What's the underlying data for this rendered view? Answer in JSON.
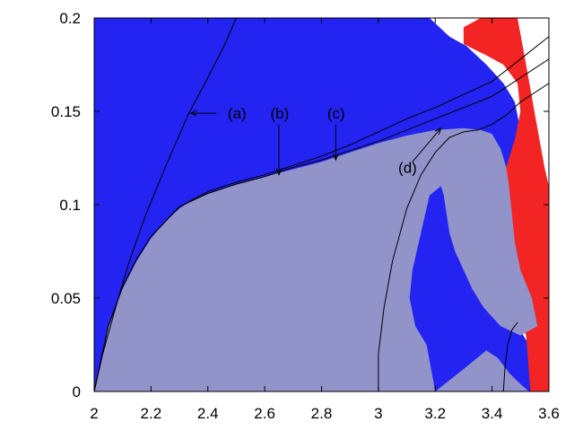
{
  "chart_data": {
    "type": "area",
    "title": "",
    "xlabel": "",
    "ylabel": "",
    "xlim": [
      2,
      3.6
    ],
    "ylim": [
      0,
      0.2
    ],
    "x_ticks": [
      "2",
      "2.2",
      "2.4",
      "2.6",
      "2.8",
      "3",
      "3.2",
      "3.4",
      "3.6"
    ],
    "y_ticks": [
      "0",
      "0.05",
      "0.1",
      "0.15",
      "0.2"
    ],
    "grid": false,
    "colors": {
      "blue": "#2323f2",
      "red": "#f22424",
      "lavender": "#9193c9",
      "white": "#ffffff",
      "line": "#000000"
    },
    "regions": [
      {
        "color": "blue",
        "boundary": [
          [
            2,
            0
          ],
          [
            2,
            0.2
          ],
          [
            3.18,
            0.2
          ],
          [
            3.25,
            0.19
          ],
          [
            3.31,
            0.185
          ],
          [
            3.38,
            0.175
          ],
          [
            3.44,
            0.165
          ],
          [
            3.48,
            0.155
          ],
          [
            3.5,
            0.14
          ],
          [
            3.47,
            0.12
          ],
          [
            3.43,
            0.1
          ],
          [
            3.41,
            0.08
          ],
          [
            3.42,
            0.06
          ],
          [
            3.46,
            0.045
          ],
          [
            3.51,
            0.03
          ],
          [
            3.55,
            0.02
          ],
          [
            3.58,
            0.0
          ],
          [
            2,
            0
          ]
        ]
      },
      {
        "color": "red",
        "boundary": [
          [
            3.3,
            0.195
          ],
          [
            3.36,
            0.2
          ],
          [
            3.49,
            0.2
          ],
          [
            3.55,
            0.15
          ],
          [
            3.585,
            0.12
          ],
          [
            3.6,
            0.11
          ],
          [
            3.6,
            0.0
          ],
          [
            3.535,
            0.0
          ],
          [
            3.52,
            0.03
          ],
          [
            3.47,
            0.05
          ],
          [
            3.43,
            0.06
          ],
          [
            3.41,
            0.08
          ],
          [
            3.42,
            0.1
          ],
          [
            3.45,
            0.12
          ],
          [
            3.48,
            0.135
          ],
          [
            3.5,
            0.15
          ],
          [
            3.49,
            0.165
          ],
          [
            3.44,
            0.175
          ],
          [
            3.38,
            0.18
          ],
          [
            3.34,
            0.183
          ],
          [
            3.3,
            0.186
          ]
        ]
      },
      {
        "color": "white",
        "boundary": [
          [
            3.49,
            0.2
          ],
          [
            3.6,
            0.2
          ],
          [
            3.6,
            0.11
          ],
          [
            3.585,
            0.12
          ],
          [
            3.555,
            0.145
          ],
          [
            3.52,
            0.175
          ]
        ]
      },
      {
        "color": "lavender",
        "boundary": [
          [
            2,
            0
          ],
          [
            2.05,
            0.035
          ],
          [
            2.1,
            0.055
          ],
          [
            2.15,
            0.07
          ],
          [
            2.2,
            0.082
          ],
          [
            2.25,
            0.091
          ],
          [
            2.3,
            0.098
          ],
          [
            2.35,
            0.103
          ],
          [
            2.4,
            0.106
          ],
          [
            2.5,
            0.111
          ],
          [
            2.6,
            0.115
          ],
          [
            2.7,
            0.119
          ],
          [
            2.8,
            0.123
          ],
          [
            2.9,
            0.128
          ],
          [
            3.0,
            0.133
          ],
          [
            3.1,
            0.137
          ],
          [
            3.2,
            0.14
          ],
          [
            3.3,
            0.141
          ],
          [
            3.36,
            0.14
          ],
          [
            3.4,
            0.138
          ],
          [
            3.43,
            0.13
          ],
          [
            3.45,
            0.12
          ],
          [
            3.46,
            0.11
          ],
          [
            3.47,
            0.095
          ],
          [
            3.48,
            0.08
          ],
          [
            3.5,
            0.065
          ],
          [
            3.54,
            0.05
          ],
          [
            3.56,
            0.035
          ],
          [
            3.5,
            0.03
          ],
          [
            3.43,
            0.035
          ],
          [
            3.37,
            0.045
          ],
          [
            3.33,
            0.055
          ],
          [
            3.3,
            0.065
          ],
          [
            3.27,
            0.075
          ],
          [
            3.25,
            0.085
          ],
          [
            3.24,
            0.095
          ],
          [
            3.23,
            0.105
          ],
          [
            3.22,
            0.11
          ],
          [
            3.18,
            0.105
          ],
          [
            3.15,
            0.085
          ],
          [
            3.12,
            0.065
          ],
          [
            3.11,
            0.05
          ],
          [
            3.13,
            0.035
          ],
          [
            3.17,
            0.025
          ],
          [
            3.2,
            0.0
          ]
        ]
      },
      {
        "color": "lavender",
        "boundary": [
          [
            3.2,
            0.0
          ],
          [
            3.3,
            0.012
          ],
          [
            3.38,
            0.022
          ],
          [
            3.42,
            0.018
          ],
          [
            3.46,
            0.01
          ],
          [
            3.5,
            0.004
          ],
          [
            3.53,
            0.0
          ]
        ]
      }
    ],
    "series": [
      {
        "name": "(a)",
        "points": [
          [
            2,
            0
          ],
          [
            2.03,
            0.02
          ],
          [
            2.07,
            0.042
          ],
          [
            2.12,
            0.068
          ],
          [
            2.18,
            0.094
          ],
          [
            2.25,
            0.12
          ],
          [
            2.33,
            0.148
          ],
          [
            2.4,
            0.168
          ],
          [
            2.46,
            0.186
          ],
          [
            2.5,
            0.2
          ]
        ]
      },
      {
        "name": "(b)",
        "points": [
          [
            2,
            0
          ],
          [
            2.05,
            0.035
          ],
          [
            2.1,
            0.056
          ],
          [
            2.15,
            0.071
          ],
          [
            2.2,
            0.083
          ],
          [
            2.3,
            0.099
          ],
          [
            2.4,
            0.107
          ],
          [
            2.5,
            0.112
          ],
          [
            2.6,
            0.116
          ],
          [
            2.7,
            0.121
          ],
          [
            2.8,
            0.126
          ],
          [
            2.9,
            0.132
          ],
          [
            3.0,
            0.139
          ],
          [
            3.1,
            0.146
          ],
          [
            3.2,
            0.152
          ],
          [
            3.3,
            0.159
          ],
          [
            3.4,
            0.166
          ],
          [
            3.5,
            0.178
          ],
          [
            3.6,
            0.19
          ]
        ]
      },
      {
        "name": "(c)",
        "points": [
          [
            2,
            0
          ],
          [
            2.05,
            0.035
          ],
          [
            2.1,
            0.056
          ],
          [
            2.15,
            0.071
          ],
          [
            2.2,
            0.083
          ],
          [
            2.3,
            0.099
          ],
          [
            2.4,
            0.106
          ],
          [
            2.5,
            0.111
          ],
          [
            2.6,
            0.115
          ],
          [
            2.7,
            0.12
          ],
          [
            2.8,
            0.124
          ],
          [
            2.9,
            0.129
          ],
          [
            3.0,
            0.134
          ],
          [
            3.1,
            0.14
          ],
          [
            3.2,
            0.146
          ],
          [
            3.3,
            0.152
          ],
          [
            3.4,
            0.158
          ],
          [
            3.5,
            0.168
          ],
          [
            3.6,
            0.178
          ]
        ]
      },
      {
        "name": "(d)",
        "points": [
          [
            3.0,
            0
          ],
          [
            3.0,
            0.02
          ],
          [
            3.02,
            0.045
          ],
          [
            3.05,
            0.07
          ],
          [
            3.1,
            0.098
          ],
          [
            3.15,
            0.116
          ],
          [
            3.2,
            0.128
          ],
          [
            3.25,
            0.136
          ],
          [
            3.3,
            0.139
          ],
          [
            3.35,
            0.14
          ],
          [
            3.4,
            0.143
          ],
          [
            3.45,
            0.148
          ],
          [
            3.5,
            0.155
          ],
          [
            3.6,
            0.165
          ]
        ]
      },
      {
        "name": "",
        "points": [
          [
            3.44,
            0
          ],
          [
            3.445,
            0.012
          ],
          [
            3.455,
            0.025
          ],
          [
            3.47,
            0.033
          ],
          [
            3.49,
            0.037
          ]
        ]
      }
    ],
    "annotations": [
      {
        "label": "(a)",
        "text_at": [
          2.47,
          0.149
        ],
        "arrow_from": [
          2.43,
          0.149
        ],
        "arrow_to": [
          2.34,
          0.149
        ]
      },
      {
        "label": "(b)",
        "text_at": [
          2.62,
          0.149
        ],
        "arrow_from": [
          2.65,
          0.143
        ],
        "arrow_to": [
          2.65,
          0.116
        ]
      },
      {
        "label": "(c)",
        "text_at": [
          2.82,
          0.149
        ],
        "arrow_from": [
          2.85,
          0.143
        ],
        "arrow_to": [
          2.85,
          0.124
        ]
      },
      {
        "label": "(d)",
        "text_at": [
          3.07,
          0.12
        ],
        "arrow_from": [
          3.12,
          0.123
        ],
        "arrow_to": [
          3.22,
          0.141
        ]
      }
    ]
  }
}
